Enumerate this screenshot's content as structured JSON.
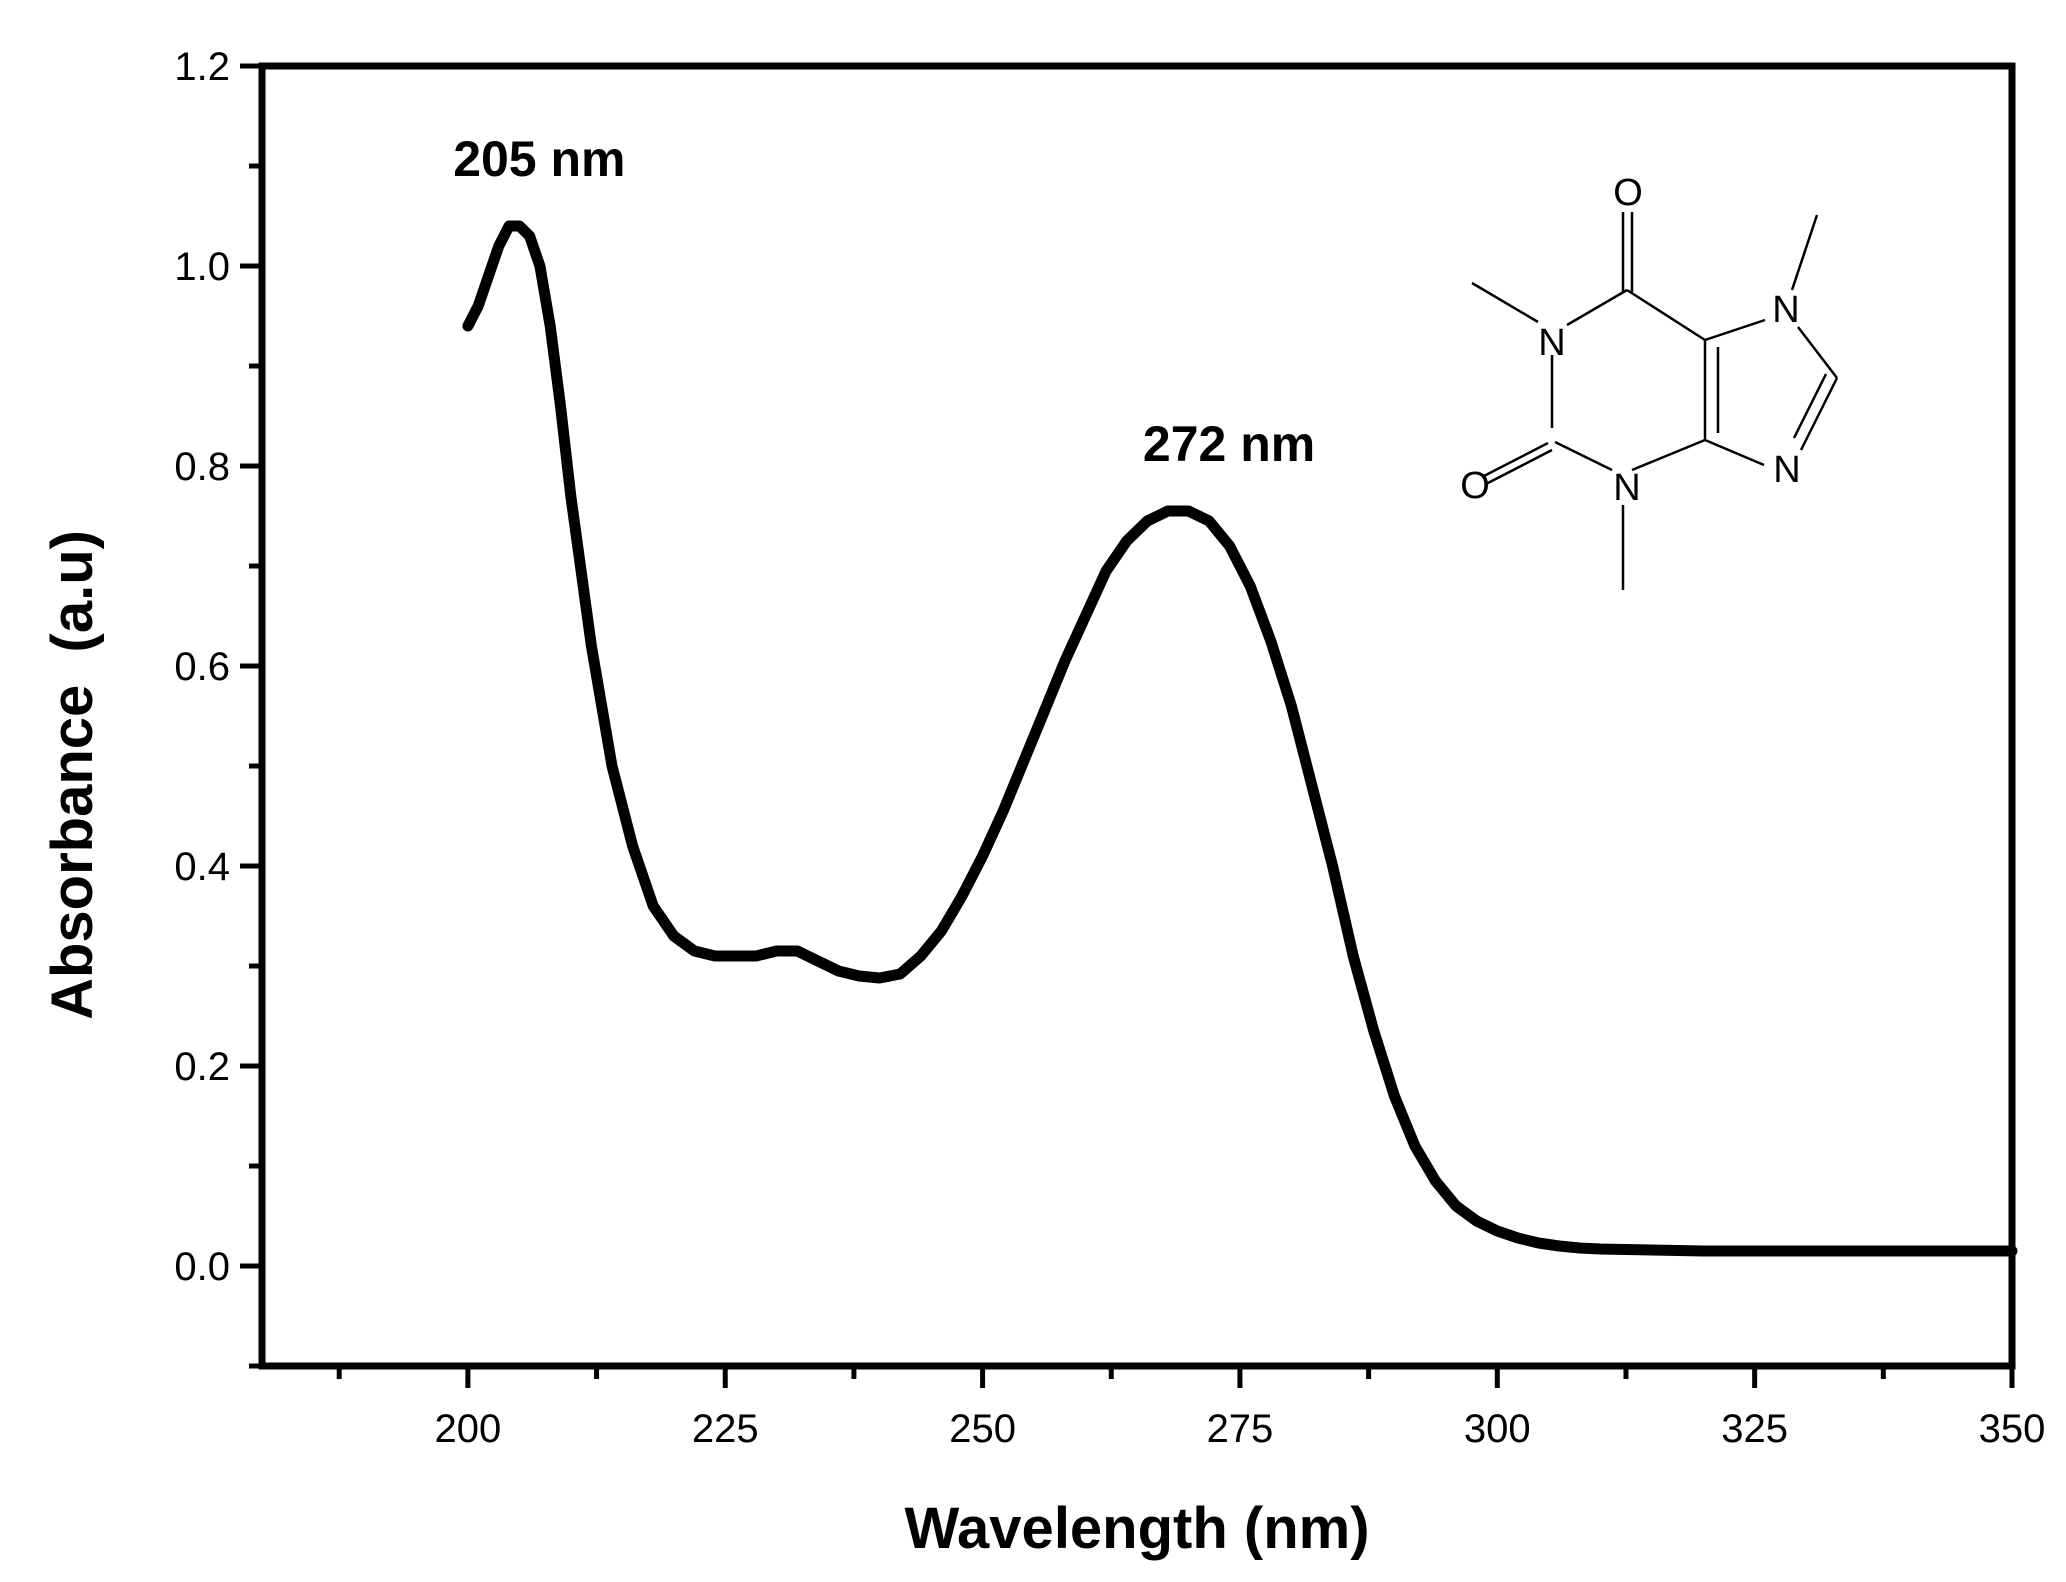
{
  "chart_data": {
    "type": "line",
    "title": "",
    "xlabel": "Wavelength (nm)",
    "ylabel": "Absorbance  (a.u)",
    "xlim": [
      180,
      350
    ],
    "ylim": [
      -0.1,
      1.2
    ],
    "xticks": [
      200,
      225,
      250,
      275,
      300,
      325,
      350
    ],
    "xtick_labels": [
      "200",
      "225",
      "250",
      "275",
      "300",
      "325",
      "350"
    ],
    "yticks": [
      0.0,
      0.2,
      0.4,
      0.6,
      0.8,
      1.0,
      1.2
    ],
    "ytick_labels": [
      "0.0",
      "0.2",
      "0.4",
      "0.6",
      "0.8",
      "1.0",
      "1.2"
    ],
    "grid": false,
    "legend": "none",
    "series": [
      {
        "color": "#000000",
        "x": [
          200,
          201,
          202,
          203,
          204,
          205,
          206,
          207,
          208,
          209,
          210,
          212,
          214,
          216,
          218,
          220,
          222,
          224,
          226,
          228,
          230,
          232,
          234,
          236,
          238,
          240,
          242,
          244,
          246,
          248,
          250,
          252,
          254,
          256,
          258,
          260,
          262,
          264,
          266,
          268,
          270,
          272,
          274,
          276,
          278,
          280,
          282,
          284,
          286,
          288,
          290,
          292,
          294,
          296,
          298,
          300,
          302,
          304,
          306,
          308,
          310,
          315,
          320,
          325,
          330,
          335,
          340,
          345,
          350
        ],
        "y": [
          0.94,
          0.96,
          0.99,
          1.02,
          1.04,
          1.04,
          1.03,
          1.0,
          0.94,
          0.86,
          0.77,
          0.62,
          0.5,
          0.42,
          0.36,
          0.33,
          0.315,
          0.31,
          0.31,
          0.31,
          0.315,
          0.315,
          0.305,
          0.295,
          0.29,
          0.288,
          0.292,
          0.31,
          0.335,
          0.37,
          0.41,
          0.455,
          0.505,
          0.555,
          0.605,
          0.65,
          0.695,
          0.725,
          0.745,
          0.755,
          0.755,
          0.745,
          0.72,
          0.68,
          0.625,
          0.56,
          0.48,
          0.4,
          0.31,
          0.235,
          0.17,
          0.12,
          0.085,
          0.06,
          0.045,
          0.035,
          0.028,
          0.023,
          0.02,
          0.018,
          0.017,
          0.016,
          0.015,
          0.015,
          0.015,
          0.015,
          0.015,
          0.015,
          0.015
        ]
      }
    ],
    "annotations": [
      {
        "text": "205 nm",
        "x": 205,
        "y": 1.04
      },
      {
        "text": "272 nm",
        "x": 272,
        "y": 0.755
      }
    ],
    "inset_structure": {
      "labels": [
        "O",
        "N",
        "N",
        "N",
        "O",
        "N"
      ]
    }
  }
}
